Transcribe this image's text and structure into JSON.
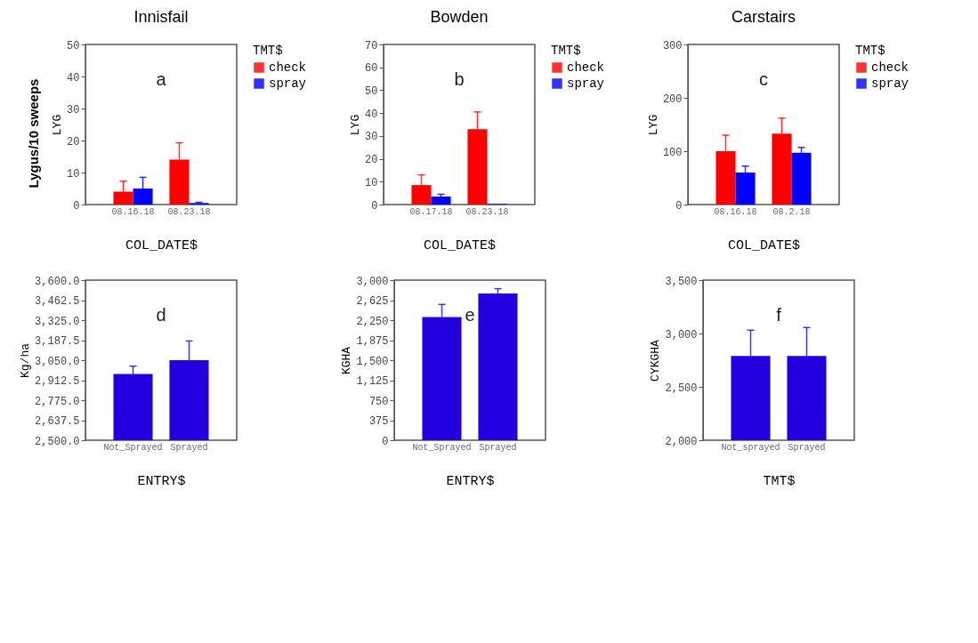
{
  "chart_data": [
    {
      "type": "bar",
      "title": "Innisfail",
      "ylabel": "LYG",
      "xlabel": "COL_DATE$",
      "legend_title": "TMT$",
      "legend": "right",
      "annotations": [
        "a",
        "Lygus/10 sweeps"
      ],
      "categories": [
        "08.16.18",
        "08.23.18"
      ],
      "ylim": [
        0,
        50
      ],
      "yticks": [
        0,
        10,
        20,
        30,
        40,
        50
      ],
      "series": [
        {
          "name": "check",
          "color": "#ff0000",
          "values": [
            4,
            14
          ],
          "errors": [
            3.3,
            5.3
          ]
        },
        {
          "name": "spray",
          "color": "#0000ff",
          "values": [
            5,
            0.5
          ],
          "errors": [
            3.5,
            0.2
          ]
        }
      ]
    },
    {
      "type": "bar",
      "title": "Bowden",
      "ylabel": "LYG",
      "xlabel": "COL_DATE$",
      "legend_title": "TMT$",
      "legend": "right",
      "annotations": [
        "b"
      ],
      "categories": [
        "08.17.18",
        "08.23.18"
      ],
      "ylim": [
        0,
        70
      ],
      "yticks": [
        0,
        10,
        20,
        30,
        40,
        50,
        60,
        70
      ],
      "series": [
        {
          "name": "check",
          "color": "#ff0000",
          "values": [
            8.5,
            33
          ],
          "errors": [
            4.5,
            7.5
          ]
        },
        {
          "name": "spray",
          "color": "#0000ff",
          "values": [
            3.5,
            0.3
          ],
          "errors": [
            1,
            null
          ]
        }
      ]
    },
    {
      "type": "bar",
      "title": "Carstairs",
      "ylabel": "LYG",
      "xlabel": "COL_DATE$",
      "legend_title": "TMT$",
      "legend": "right",
      "annotations": [
        "c"
      ],
      "categories": [
        "08.16.18",
        "08.2.18"
      ],
      "ylim": [
        0,
        300
      ],
      "yticks": [
        0,
        100,
        200,
        300
      ],
      "series": [
        {
          "name": "check",
          "color": "#ff0000",
          "values": [
            100,
            133
          ],
          "errors": [
            30,
            29
          ]
        },
        {
          "name": "spray",
          "color": "#0000ff",
          "values": [
            60,
            97
          ],
          "errors": [
            12,
            10
          ]
        }
      ]
    },
    {
      "type": "bar",
      "ylabel": "Kg/ha",
      "xlabel": "ENTRY$",
      "annotations": [
        "d"
      ],
      "categories": [
        "Not_Sprayed",
        "Sprayed"
      ],
      "ylim": [
        2500,
        3600
      ],
      "yticks": [
        {
          "value": 2500,
          "label": "2,500.0"
        },
        {
          "value": 2637.5,
          "label": "2,637.5"
        },
        {
          "value": 2775,
          "label": "2,775.0"
        },
        {
          "value": 2912.5,
          "label": "2,912.5"
        },
        {
          "value": 3050,
          "label": "3,050.0"
        },
        {
          "value": 3187.5,
          "label": "3,187.5"
        },
        {
          "value": 3325,
          "label": "3,325.0"
        },
        {
          "value": 3462.5,
          "label": "3,462.5"
        },
        {
          "value": 3600,
          "label": "3,600.0"
        }
      ],
      "series": [
        {
          "color": "#2200e0",
          "values": [
            2955,
            3050
          ],
          "errors": [
            54,
            132
          ]
        }
      ]
    },
    {
      "type": "bar",
      "ylabel": "KGHA",
      "xlabel": "ENTRY$",
      "annotations": [
        "e"
      ],
      "categories": [
        "Not_Sprayed",
        "Sprayed"
      ],
      "ylim": [
        0,
        3000
      ],
      "yticks": [
        0,
        375,
        750,
        {
          "value": 1125,
          "label": "1,125"
        },
        {
          "value": 1500,
          "label": "1,500"
        },
        {
          "value": 1875,
          "label": "1,875"
        },
        {
          "value": 2250,
          "label": "2,250"
        },
        {
          "value": 2625,
          "label": "2,625"
        },
        {
          "value": 3000,
          "label": "3,000"
        }
      ],
      "series": [
        {
          "color": "#2200e0",
          "values": [
            2310,
            2750
          ],
          "errors": [
            235,
            90
          ]
        }
      ]
    },
    {
      "type": "bar",
      "ylabel": "CYKGHA",
      "xlabel": "TMT$",
      "annotations": [
        "f"
      ],
      "categories": [
        "Not_sprayed",
        "Sprayed"
      ],
      "ylim": [
        2000,
        3500
      ],
      "yticks": [
        {
          "value": 2000,
          "label": "2,000"
        },
        {
          "value": 2500,
          "label": "2,500"
        },
        {
          "value": 3000,
          "label": "3,000"
        },
        {
          "value": 3500,
          "label": "3,500"
        }
      ],
      "series": [
        {
          "color": "#2200e0",
          "values": [
            2790,
            2790
          ],
          "errors": [
            241,
            266
          ]
        }
      ]
    }
  ]
}
